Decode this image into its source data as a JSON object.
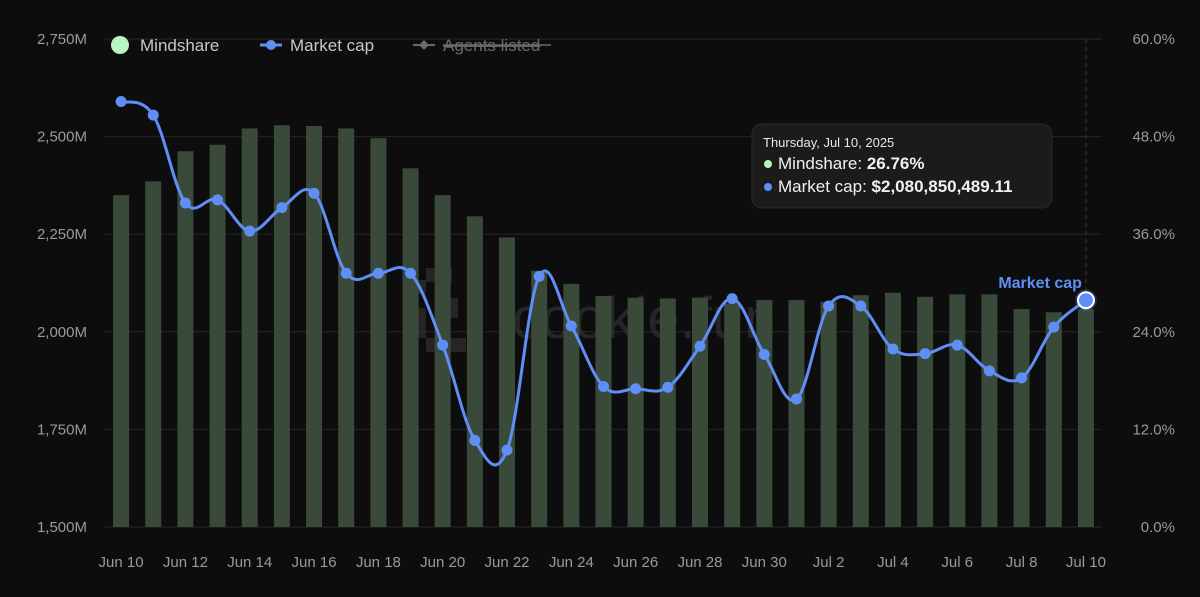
{
  "chart_data": {
    "type": "bar+line",
    "legend": [
      {
        "name": "Mindshare",
        "color": "#b8f5c0",
        "marker": "circle",
        "enabled": true
      },
      {
        "name": "Market cap",
        "color": "#5f8ff5",
        "marker": "line-dot",
        "enabled": true
      },
      {
        "name": "Agents listed",
        "color": "#6a6a6a",
        "marker": "line-diamond",
        "enabled": false
      }
    ],
    "categories": [
      "Jun 10",
      "Jun 11",
      "Jun 12",
      "Jun 13",
      "Jun 14",
      "Jun 15",
      "Jun 16",
      "Jun 17",
      "Jun 18",
      "Jun 19",
      "Jun 20",
      "Jun 21",
      "Jun 22",
      "Jun 23",
      "Jun 24",
      "Jun 25",
      "Jun 26",
      "Jun 27",
      "Jun 28",
      "Jun 29",
      "Jun 30",
      "Jul 1",
      "Jul 2",
      "Jul 3",
      "Jul 4",
      "Jul 5",
      "Jul 6",
      "Jul 7",
      "Jul 8",
      "Jul 9",
      "Jul 10"
    ],
    "x_tick_labels": [
      "Jun 10",
      "Jun 12",
      "Jun 14",
      "Jun 16",
      "Jun 18",
      "Jun 20",
      "Jun 22",
      "Jun 24",
      "Jun 26",
      "Jun 28",
      "Jun 30",
      "Jul 2",
      "Jul 4",
      "Jul 6",
      "Jul 8",
      "Jul 10"
    ],
    "left_axis": {
      "ticks": [
        "1,500M",
        "1,750M",
        "2,000M",
        "2,250M",
        "2,500M",
        "2,750M"
      ],
      "range": [
        1500,
        2750
      ],
      "unit": "M"
    },
    "right_axis": {
      "ticks": [
        "0.0%",
        "12.0%",
        "24.0%",
        "36.0%",
        "48.0%",
        "60.0%"
      ],
      "range": [
        0,
        60
      ]
    },
    "series": [
      {
        "name": "Mindshare",
        "kind": "bar",
        "axis": "right",
        "color": "#3a4a3a",
        "values": [
          40.8,
          42.5,
          46.2,
          47.0,
          49.0,
          49.4,
          49.3,
          49.0,
          47.8,
          44.1,
          40.8,
          38.2,
          35.6,
          31.5,
          29.9,
          28.4,
          28.2,
          28.1,
          28.2,
          27.5,
          27.9,
          27.9,
          27.7,
          28.5,
          28.8,
          28.3,
          28.6,
          28.6,
          26.8,
          26.4,
          26.76
        ]
      },
      {
        "name": "Market cap",
        "kind": "line",
        "axis": "left",
        "color": "#5f8ff5",
        "values": [
          2590,
          2555,
          2330,
          2338,
          2258,
          2318,
          2355,
          2150,
          2150,
          2150,
          1966,
          1722,
          1697,
          2142,
          2015,
          1860,
          1854,
          1858,
          1963,
          2085,
          1942,
          1828,
          2066,
          2066,
          1956,
          1944,
          1966,
          1900,
          1882,
          2012,
          2080.85
        ]
      }
    ],
    "end_label": "Market cap",
    "tooltip": {
      "date": "Thursday, Jul 10, 2025",
      "rows": [
        {
          "label": "Mindshare: ",
          "value": "26.76%",
          "color": "#b8f5c0"
        },
        {
          "label": "Market cap: ",
          "value": "$2,080,850,489.11",
          "color": "#5f8ff5"
        }
      ]
    },
    "grid": true,
    "legend_position": "top-left"
  },
  "watermark": "cookie.fun"
}
